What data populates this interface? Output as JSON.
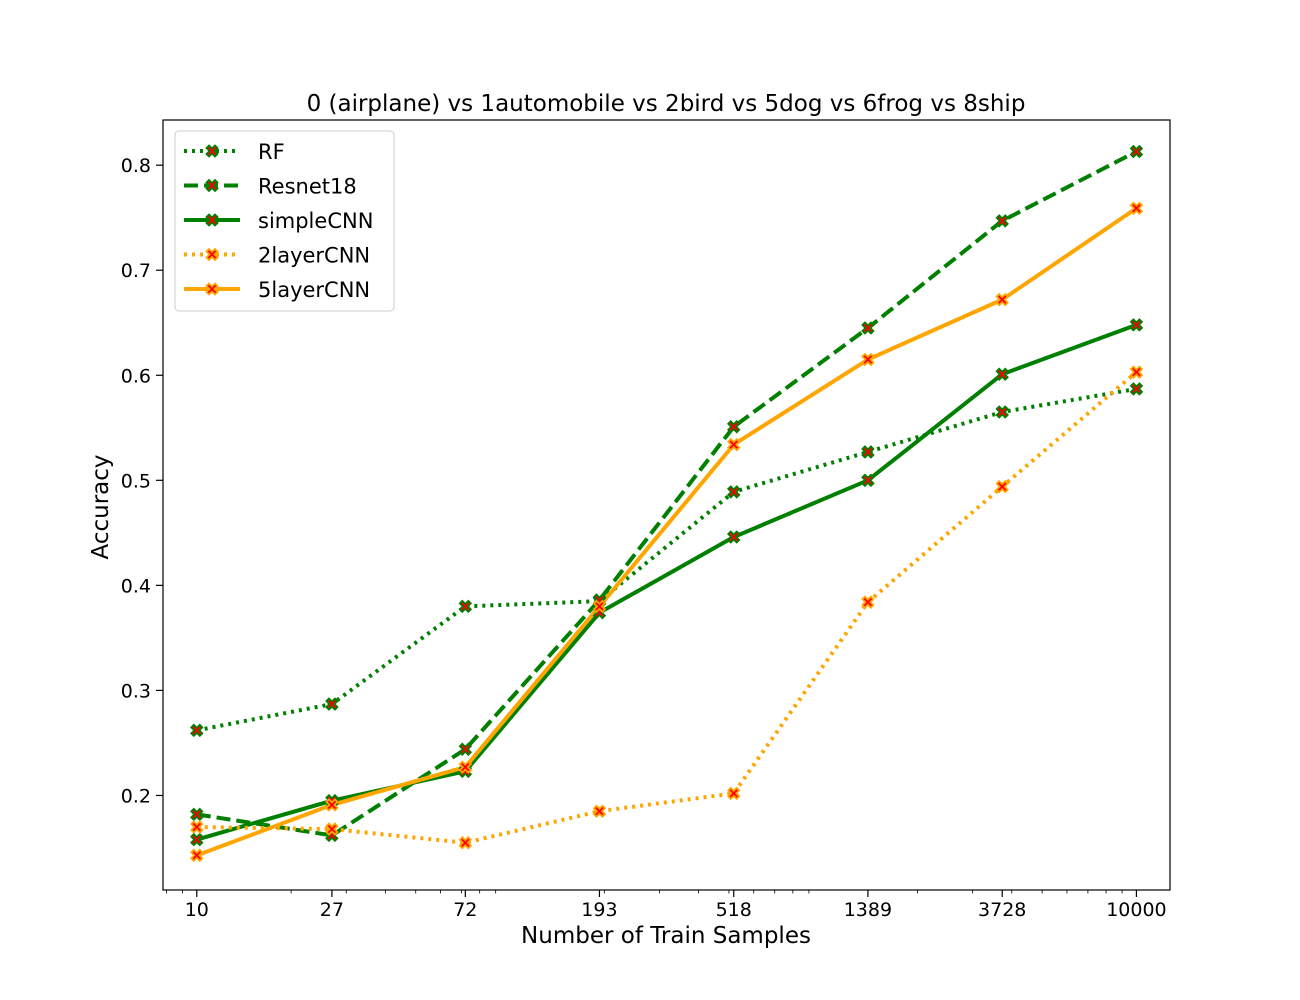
{
  "chart_data": {
    "type": "line",
    "title": "0 (airplane)  vs 1automobile vs 2bird vs 5dog vs 6frog vs 8ship",
    "xlabel": "Number of Train Samples",
    "ylabel": "Accuracy",
    "x_scale": "log",
    "x": [
      10,
      27,
      72,
      193,
      518,
      1389,
      3728,
      10000
    ],
    "x_tick_labels": [
      "10",
      "27",
      "72",
      "193",
      "518",
      "1389",
      "3728",
      "10000"
    ],
    "xlim": [
      7.8,
      12800
    ],
    "ylim": [
      0.11,
      0.843
    ],
    "y_ticks": [
      0.2,
      0.3,
      0.4,
      0.5,
      0.6,
      0.7,
      0.8
    ],
    "y_tick_labels": [
      "0.2",
      "0.3",
      "0.4",
      "0.5",
      "0.6",
      "0.7",
      "0.8"
    ],
    "legend_position": "top-left",
    "grid": false,
    "marker_fill": "#ff0000",
    "series": [
      {
        "name": "RF",
        "color": "#008000",
        "linestyle": "dotted",
        "values": [
          0.262,
          0.287,
          0.38,
          0.385,
          0.489,
          0.527,
          0.565,
          0.587
        ]
      },
      {
        "name": "Resnet18",
        "color": "#008000",
        "linestyle": "dashed",
        "values": [
          0.182,
          0.162,
          0.244,
          0.386,
          0.551,
          0.645,
          0.747,
          0.813
        ]
      },
      {
        "name": "simpleCNN",
        "color": "#008000",
        "linestyle": "solid",
        "values": [
          0.158,
          0.195,
          0.223,
          0.374,
          0.446,
          0.5,
          0.601,
          0.648
        ]
      },
      {
        "name": "2layerCNN",
        "color": "#ffa500",
        "linestyle": "dotted",
        "values": [
          0.17,
          0.168,
          0.155,
          0.185,
          0.202,
          0.384,
          0.494,
          0.603
        ]
      },
      {
        "name": "5layerCNN",
        "color": "#ffa500",
        "linestyle": "solid",
        "values": [
          0.143,
          0.191,
          0.227,
          0.38,
          0.534,
          0.615,
          0.672,
          0.759
        ]
      }
    ]
  }
}
